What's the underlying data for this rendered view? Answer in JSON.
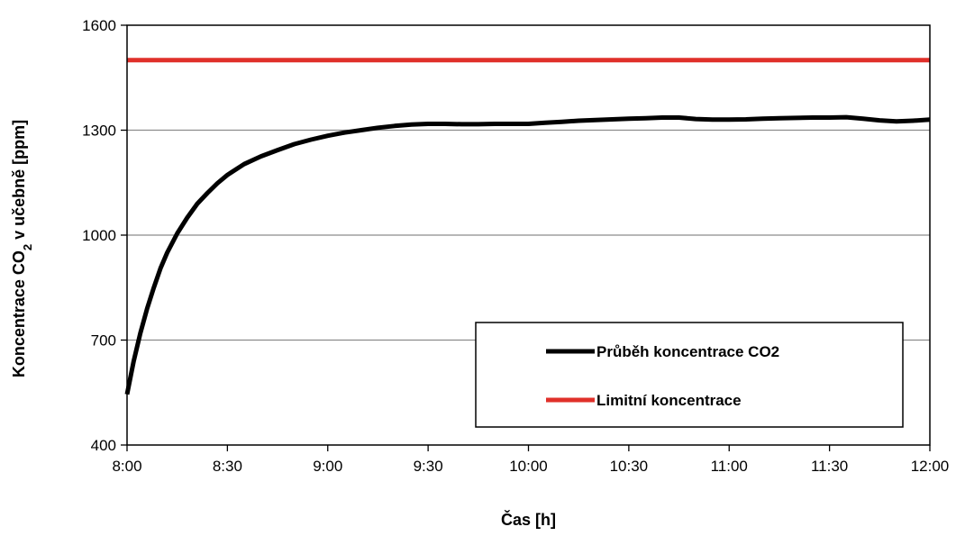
{
  "chart_data": {
    "type": "line",
    "title": "",
    "xlabel": "Čas [h]",
    "ylabel_parts": {
      "pre": "Koncentrace CO",
      "sub": "2",
      "post": " v učebně [ppm]"
    },
    "xlim": [
      0,
      240
    ],
    "ylim": [
      400,
      1600
    ],
    "x_ticks": [
      {
        "value": 0,
        "label": "8:00"
      },
      {
        "value": 30,
        "label": "8:30"
      },
      {
        "value": 60,
        "label": "9:00"
      },
      {
        "value": 90,
        "label": "9:30"
      },
      {
        "value": 120,
        "label": "10:00"
      },
      {
        "value": 150,
        "label": "10:30"
      },
      {
        "value": 180,
        "label": "11:00"
      },
      {
        "value": 210,
        "label": "11:30"
      },
      {
        "value": 240,
        "label": "12:00"
      }
    ],
    "y_ticks": [
      400,
      700,
      1000,
      1300,
      1600
    ],
    "grid": {
      "y": true,
      "x": false
    },
    "legend_position": "bottom-right",
    "series": [
      {
        "name": "Průběh koncentrace CO2",
        "color": "#000000",
        "x": [
          0,
          2,
          4,
          6,
          8,
          10,
          12,
          15,
          18,
          21,
          24,
          27,
          30,
          35,
          40,
          45,
          50,
          55,
          60,
          65,
          70,
          75,
          80,
          85,
          90,
          95,
          100,
          105,
          110,
          115,
          120,
          125,
          130,
          135,
          140,
          145,
          150,
          155,
          160,
          165,
          170,
          175,
          180,
          185,
          190,
          195,
          200,
          205,
          210,
          215,
          220,
          225,
          230,
          235,
          240
        ],
        "y": [
          545,
          640,
          720,
          790,
          850,
          905,
          950,
          1005,
          1050,
          1090,
          1120,
          1148,
          1172,
          1203,
          1225,
          1243,
          1260,
          1273,
          1284,
          1293,
          1300,
          1307,
          1312,
          1316,
          1318,
          1318,
          1317,
          1317,
          1318,
          1318,
          1318,
          1321,
          1324,
          1327,
          1329,
          1331,
          1333,
          1334,
          1336,
          1336,
          1332,
          1330,
          1330,
          1331,
          1333,
          1334,
          1335,
          1336,
          1336,
          1337,
          1333,
          1328,
          1325,
          1327,
          1330
        ]
      },
      {
        "name": "Limitní koncentrace",
        "color": "#e0302a",
        "x": [
          0,
          240
        ],
        "y": [
          1500,
          1500
        ]
      }
    ]
  }
}
